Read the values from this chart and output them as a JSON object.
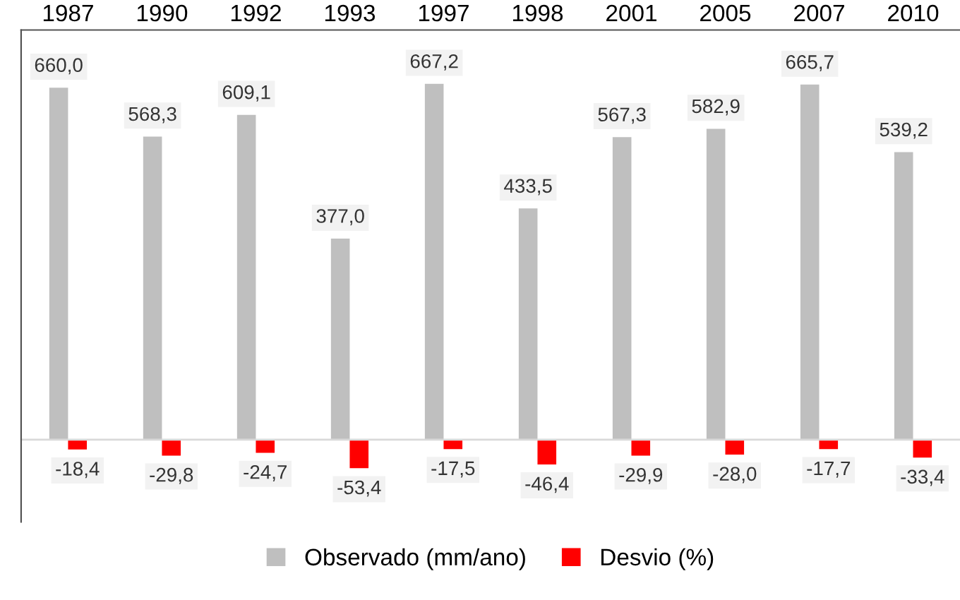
{
  "chart_data": {
    "type": "bar",
    "categories": [
      "1987",
      "1990",
      "1992",
      "1993",
      "1997",
      "1998",
      "2001",
      "2005",
      "2007",
      "2010"
    ],
    "series": [
      {
        "name": "Observado (mm/ano)",
        "color": "#bfbfbf",
        "values": [
          660.0,
          568.3,
          609.1,
          377.0,
          667.2,
          433.5,
          567.3,
          582.9,
          665.7,
          539.2
        ],
        "value_labels": [
          "660,0",
          "568,3",
          "609,1",
          "377,0",
          "667,2",
          "433,5",
          "567,3",
          "582,9",
          "665,7",
          "539,2"
        ]
      },
      {
        "name": "Desvio (%)",
        "color": "#ff0000",
        "values": [
          -18.4,
          -29.8,
          -24.7,
          -53.4,
          -17.5,
          -46.4,
          -29.9,
          -28.0,
          -17.7,
          -33.4
        ],
        "value_labels": [
          "-18,4",
          "-29,8",
          "-24,7",
          "-53,4",
          "-17,5",
          "-46,4",
          "-29,9",
          "-28,0",
          "-17,7",
          "-33,4"
        ]
      }
    ],
    "legend": "bottom",
    "grid": false,
    "tick_labels": "x"
  }
}
